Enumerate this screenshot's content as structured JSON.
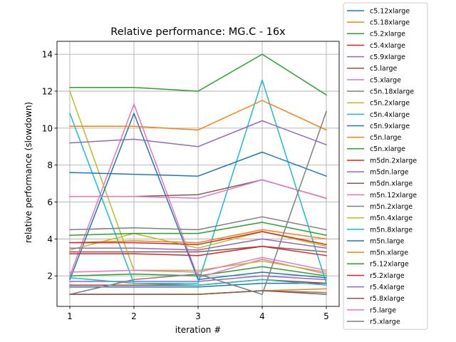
{
  "chart_data": {
    "type": "line",
    "title": "Relative performance: MG.C - 16x",
    "xlabel": "iteration #",
    "ylabel": "relative performance (slowdown)",
    "x": [
      1,
      2,
      3,
      4,
      5
    ],
    "xlim": [
      0.8,
      5.2
    ],
    "ylim": [
      0.35,
      14.7
    ],
    "xticks": [
      "1",
      "2",
      "3",
      "4",
      "5"
    ],
    "yticks": [
      "2",
      "4",
      "6",
      "8",
      "10",
      "12",
      "14"
    ],
    "grid": true,
    "legend_placement": "outside-right",
    "series": [
      {
        "name": "c5.12xlarge",
        "color": "#1f77b4",
        "values": [
          1.4,
          1.4,
          1.4,
          1.6,
          1.6
        ]
      },
      {
        "name": "c5.18xlarge",
        "color": "#ff7f0e",
        "values": [
          1.0,
          1.0,
          1.0,
          1.2,
          1.3
        ]
      },
      {
        "name": "c5.2xlarge",
        "color": "#2ca02c",
        "values": [
          2.0,
          2.1,
          2.0,
          2.5,
          2.0
        ]
      },
      {
        "name": "c5.4xlarge",
        "color": "#d62728",
        "values": [
          1.5,
          1.5,
          1.5,
          1.8,
          1.6
        ]
      },
      {
        "name": "c5.9xlarge",
        "color": "#9467bd",
        "values": [
          1.7,
          1.7,
          1.7,
          2.0,
          1.8
        ]
      },
      {
        "name": "c5.large",
        "color": "#8c564b",
        "values": [
          3.3,
          3.3,
          3.3,
          3.6,
          3.3
        ]
      },
      {
        "name": "c5.xlarge",
        "color": "#e377c2",
        "values": [
          2.0,
          11.3,
          1.9,
          2.9,
          2.1
        ]
      },
      {
        "name": "c5n.18xlarge",
        "color": "#7f7f7f",
        "values": [
          1.0,
          1.0,
          1.0,
          1.2,
          1.1
        ]
      },
      {
        "name": "c5n.2xlarge",
        "color": "#bcbd22",
        "values": [
          12.0,
          2.3,
          2.3,
          2.8,
          2.2
        ]
      },
      {
        "name": "c5n.4xlarge",
        "color": "#17becf",
        "values": [
          10.8,
          1.6,
          1.6,
          12.6,
          1.6
        ]
      },
      {
        "name": "c5n.9xlarge",
        "color": "#1f77b4",
        "values": [
          1.8,
          10.8,
          1.8,
          2.2,
          1.9
        ]
      },
      {
        "name": "c5n.large",
        "color": "#ff7f0e",
        "values": [
          10.1,
          10.1,
          9.9,
          11.5,
          9.9
        ]
      },
      {
        "name": "c5n.xlarge",
        "color": "#2ca02c",
        "values": [
          12.2,
          12.2,
          12.0,
          14.0,
          11.8
        ]
      },
      {
        "name": "m5dn.2xlarge",
        "color": "#d62728",
        "values": [
          3.2,
          3.2,
          3.1,
          3.6,
          3.1
        ]
      },
      {
        "name": "m5dn.large",
        "color": "#9467bd",
        "values": [
          9.2,
          9.4,
          9.0,
          10.4,
          9.1
        ]
      },
      {
        "name": "m5dn.xlarge",
        "color": "#8c564b",
        "values": [
          6.3,
          6.3,
          6.4,
          7.2,
          6.2
        ]
      },
      {
        "name": "m5n.12xlarge",
        "color": "#e377c2",
        "values": [
          6.3,
          6.3,
          6.2,
          7.2,
          6.2
        ]
      },
      {
        "name": "m5n.2xlarge",
        "color": "#7f7f7f",
        "values": [
          4.5,
          4.6,
          4.5,
          5.2,
          4.5
        ]
      },
      {
        "name": "m5n.4xlarge",
        "color": "#bcbd22",
        "values": [
          3.4,
          4.3,
          3.5,
          4.4,
          3.6
        ]
      },
      {
        "name": "m5n.8xlarge",
        "color": "#17becf",
        "values": [
          1.9,
          1.6,
          1.5,
          1.8,
          1.5
        ]
      },
      {
        "name": "m5n.large",
        "color": "#1f77b4",
        "values": [
          7.6,
          7.5,
          7.4,
          8.7,
          7.4
        ]
      },
      {
        "name": "m5n.xlarge",
        "color": "#ff7f0e",
        "values": [
          3.8,
          3.9,
          3.8,
          4.5,
          4.0
        ]
      },
      {
        "name": "r5.12xlarge",
        "color": "#2ca02c",
        "values": [
          4.2,
          4.3,
          4.3,
          4.9,
          4.2
        ]
      },
      {
        "name": "r5.2xlarge",
        "color": "#d62728",
        "values": [
          3.8,
          3.8,
          3.7,
          4.4,
          3.7
        ]
      },
      {
        "name": "r5.4xlarge",
        "color": "#9467bd",
        "values": [
          3.5,
          3.5,
          3.4,
          4.0,
          3.5
        ]
      },
      {
        "name": "r5.8xlarge",
        "color": "#8c564b",
        "values": [
          1.0,
          1.0,
          1.0,
          1.2,
          1.0
        ]
      },
      {
        "name": "r5.large",
        "color": "#e377c2",
        "values": [
          2.2,
          2.3,
          2.2,
          3.0,
          2.3
        ]
      },
      {
        "name": "r5.xlarge",
        "color": "#7f7f7f",
        "values": [
          1.0,
          1.8,
          2.1,
          1.0,
          10.9
        ]
      }
    ]
  }
}
